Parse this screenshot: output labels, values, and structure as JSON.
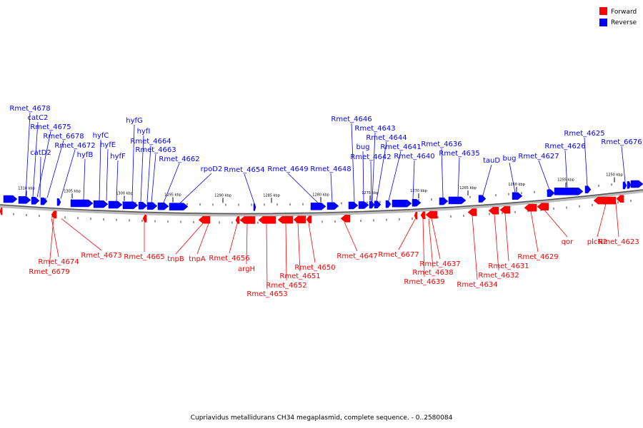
{
  "legend": {
    "forward_label": "Forward",
    "reverse_label": "Reverse",
    "forward_color": "#ff0000",
    "reverse_color": "#0000ff"
  },
  "caption": "Cupriavidus metallidurans CH34 megaplasmid, complete sequence. - 0..2580084",
  "scale_labels": [
    "1310 kbp",
    "1305 kbp",
    "1300 kbp",
    "1295 kbp",
    "1290 kbp",
    "1285 kbp",
    "1280 kbp",
    "1275 kbp",
    "1270 kbp",
    "1265 kbp",
    "1260 kbp",
    "1255 kbp",
    "1250 kbp"
  ],
  "reverse_genes": [
    "Rmet_4678",
    "catC2",
    "Rmet_4675",
    "catD2",
    "Rmet_6678",
    "Rmet_4672",
    "hyfB",
    "hyfC",
    "hyfE",
    "hyfF",
    "hyfG",
    "hyfI",
    "Rmet_4664",
    "Rmet_4663",
    "Rmet_4662",
    "rpoD2",
    "Rmet_4654",
    "Rmet_4649",
    "Rmet_4648",
    "Rmet_4646",
    "bug",
    "Rmet_4643",
    "Rmet_4644",
    "Rmet_4642",
    "Rmet_4641",
    "Rmet_4640",
    "Rmet_4636",
    "Rmet_4635",
    "tauD",
    "bug",
    "Rmet_4627",
    "Rmet_4626",
    "Rmet_4625",
    "Rmet_6676"
  ],
  "forward_genes": [
    "Rmet_4674",
    "Rmet_6679",
    "Rmet_4673",
    "Rmet_4665",
    "tnpB",
    "tnpA",
    "Rmet_4656",
    "argH",
    "Rmet_4653",
    "Rmet_4652",
    "Rmet_4651",
    "Rmet_4650",
    "Rmet_4647",
    "Rmet_6677",
    "Rmet_4637",
    "Rmet_4638",
    "Rmet_4639",
    "Rmet_4634",
    "Rmet_4632",
    "Rmet_4631",
    "Rmet_4629",
    "qor",
    "plcN2",
    "Rmet_4623"
  ]
}
